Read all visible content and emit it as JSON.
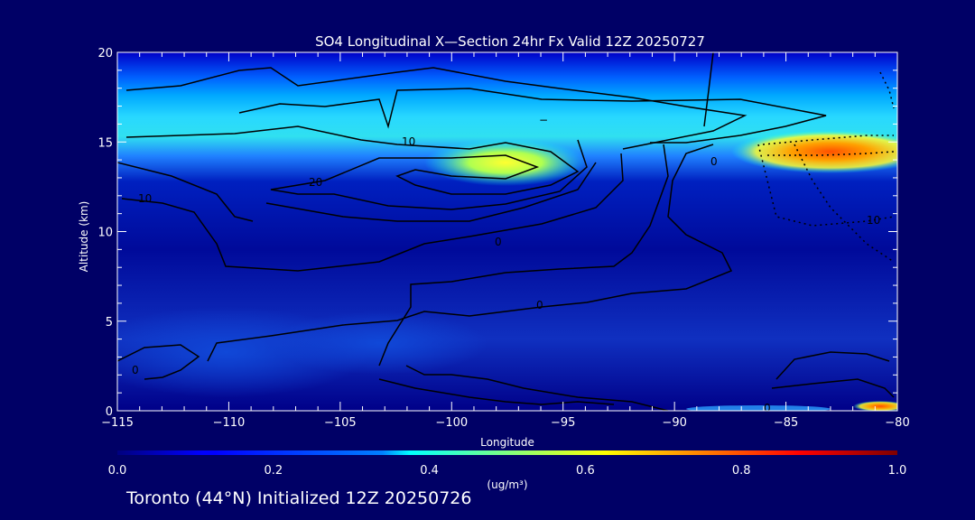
{
  "chart_data": {
    "type": "heatmap",
    "title": "SO4 Longitudinal X—Section 24hr  Fx Valid 12Z 20250727",
    "xlabel": "Longitude",
    "ylabel": "Altitude (km)",
    "xlim": [
      -115,
      -80
    ],
    "ylim": [
      0,
      20
    ],
    "x_ticks": [
      -115,
      -110,
      -105,
      -100,
      -95,
      -90,
      -85,
      -80
    ],
    "y_ticks": [
      0,
      5,
      10,
      15,
      20
    ],
    "x_tick_labels": [
      "−115",
      "−110",
      "−105",
      "−100",
      "−95",
      "−90",
      "−85",
      "−80"
    ],
    "y_tick_labels": [
      "0",
      "5",
      "10",
      "15",
      "20"
    ],
    "colorbar": {
      "min": 0.0,
      "max": 1.0,
      "ticks": [
        0.0,
        0.2,
        0.4,
        0.6,
        0.8,
        1.0
      ],
      "tick_labels": [
        "0.0",
        "0.2",
        "0.4",
        "0.6",
        "0.8",
        "1.0"
      ],
      "units_label": "(ug/m³)",
      "colormap": "jet"
    },
    "concentration_features": [
      {
        "lon": [
          -115,
          -80
        ],
        "alt": [
          12.5,
          16.5
        ],
        "value": 0.4
      },
      {
        "lon": [
          -115,
          -80
        ],
        "alt": [
          16.5,
          18.5
        ],
        "value": 0.25
      },
      {
        "lon": [
          -100,
          -95
        ],
        "alt": [
          13.5,
          15.0
        ],
        "value": 0.65
      },
      {
        "lon": [
          -85,
          -80
        ],
        "alt": [
          13.8,
          15.2
        ],
        "value": 0.75
      },
      {
        "lon": [
          -82,
          -80
        ],
        "alt": [
          0.1,
          0.5
        ],
        "value": 0.9
      }
    ],
    "contour_labels": [
      "10",
      "20",
      "10",
      "0",
      "0",
      "0",
      "10",
      "0",
      "0",
      "−"
    ]
  },
  "footer": "Toronto (44°N) Initialized 12Z 20250726",
  "colors": {
    "background": "#000066",
    "axes": "#ffffff",
    "contour": "#000000"
  }
}
